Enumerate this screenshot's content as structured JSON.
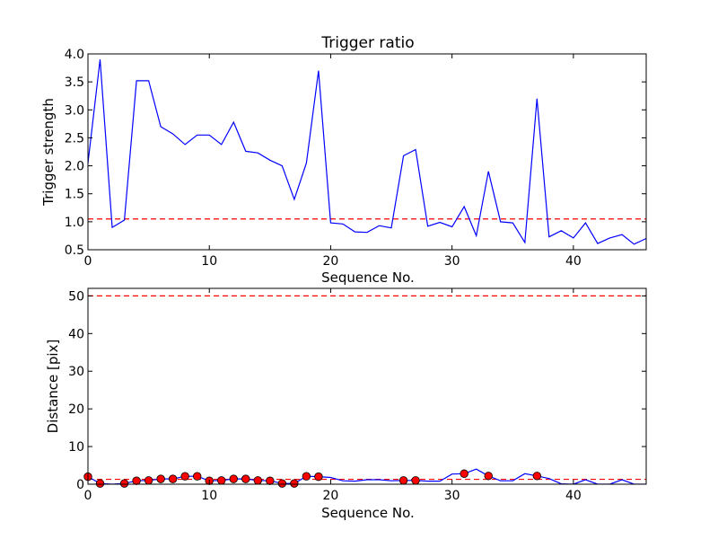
{
  "chart_data": [
    {
      "type": "line",
      "title": "Trigger ratio",
      "xlabel": "Sequence No.",
      "ylabel": "Trigger strength",
      "xlim": [
        0,
        46
      ],
      "ylim": [
        0.5,
        4.0
      ],
      "xticks": [
        0,
        10,
        20,
        30,
        40
      ],
      "xtick_labels": [
        "0",
        "10",
        "20",
        "30",
        "40"
      ],
      "yticks": [
        0.5,
        1.0,
        1.5,
        2.0,
        2.5,
        3.0,
        3.5,
        4.0
      ],
      "ytick_labels": [
        "0.5",
        "1.0",
        "1.5",
        "2.0",
        "2.5",
        "3.0",
        "3.5",
        "4.0"
      ],
      "grid": false,
      "line_color": "#0000ff",
      "threshold": 1.05,
      "threshold_color": "#ff0000",
      "x": [
        0,
        1,
        2,
        3,
        4,
        5,
        6,
        7,
        8,
        9,
        10,
        11,
        12,
        13,
        14,
        15,
        16,
        17,
        18,
        19,
        20,
        21,
        22,
        23,
        24,
        25,
        26,
        27,
        28,
        29,
        30,
        31,
        32,
        33,
        34,
        35,
        36,
        37,
        38,
        39,
        40,
        41,
        42,
        43,
        44,
        45,
        46
      ],
      "y": [
        2.05,
        3.9,
        0.9,
        1.03,
        3.52,
        3.52,
        2.7,
        2.57,
        2.38,
        2.55,
        2.55,
        2.38,
        2.78,
        2.26,
        2.23,
        2.1,
        2.0,
        1.4,
        2.05,
        3.7,
        0.98,
        0.96,
        0.82,
        0.81,
        0.93,
        0.89,
        2.18,
        2.29,
        0.92,
        0.99,
        0.91,
        1.27,
        0.75,
        1.9,
        1.0,
        0.98,
        0.63,
        3.2,
        0.73,
        0.84,
        0.71,
        0.98,
        0.61,
        0.71,
        0.77,
        0.6,
        0.7
      ]
    },
    {
      "type": "line",
      "title": "",
      "xlabel": "Sequence No.",
      "ylabel": "Distance [pix]",
      "xlim": [
        0,
        46
      ],
      "ylim": [
        0,
        52
      ],
      "xticks": [
        0,
        10,
        20,
        30,
        40
      ],
      "xtick_labels": [
        "0",
        "10",
        "20",
        "30",
        "40"
      ],
      "yticks": [
        0,
        10,
        20,
        30,
        40,
        50
      ],
      "ytick_labels": [
        "0",
        "10",
        "20",
        "30",
        "40",
        "50"
      ],
      "grid": false,
      "line_color": "#0000ff",
      "marker_color": "#ff0000",
      "thresholds": [
        50,
        1.3
      ],
      "threshold_color": "#ff0000",
      "x": [
        0,
        1,
        2,
        3,
        4,
        5,
        6,
        7,
        8,
        9,
        10,
        11,
        12,
        13,
        14,
        15,
        16,
        17,
        18,
        19,
        20,
        21,
        22,
        23,
        24,
        25,
        26,
        27,
        28,
        29,
        30,
        31,
        32,
        33,
        34,
        35,
        36,
        37,
        38,
        39,
        40,
        41,
        42,
        43,
        44,
        45,
        46
      ],
      "y": [
        2.0,
        0.2,
        0.0,
        0.2,
        0.9,
        1.0,
        1.4,
        1.4,
        2.1,
        2.1,
        0.9,
        1.0,
        1.4,
        1.4,
        1.0,
        0.9,
        0.2,
        0.2,
        2.1,
        2.0,
        1.8,
        0.9,
        0.8,
        1.2,
        1.2,
        0.9,
        1.0,
        1.0,
        0.8,
        0.8,
        2.7,
        2.8,
        4.0,
        2.2,
        0.9,
        0.9,
        2.8,
        2.2,
        1.5,
        0.1,
        0.0,
        1.2,
        0.0,
        0.0,
        1.2,
        0.0,
        0.0
      ],
      "marker_x": [
        0,
        1,
        3,
        4,
        5,
        6,
        7,
        8,
        9,
        10,
        11,
        12,
        13,
        14,
        15,
        16,
        17,
        18,
        19,
        26,
        27,
        31,
        33,
        37
      ],
      "marker_y": [
        2.0,
        0.2,
        0.2,
        0.9,
        1.0,
        1.4,
        1.4,
        2.1,
        2.1,
        0.9,
        1.0,
        1.4,
        1.4,
        1.0,
        0.9,
        0.2,
        0.2,
        2.1,
        2.0,
        1.0,
        1.0,
        2.8,
        2.2,
        2.2
      ]
    }
  ]
}
